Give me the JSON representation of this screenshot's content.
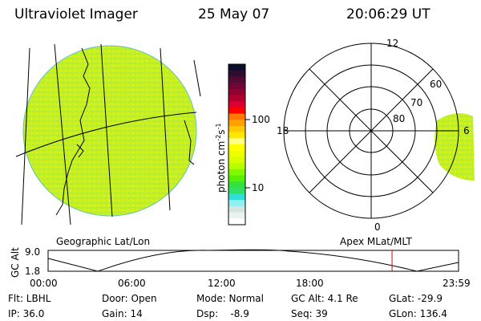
{
  "header": {
    "instrument": "Ultraviolet Imager",
    "date": "25 May 07",
    "time": "20:06:29 UT"
  },
  "colorbar": {
    "label": "photon cm",
    "exp1": "-2",
    "unit2": "s",
    "exp2": "-1",
    "ticks": [
      "100",
      "10"
    ],
    "colors": [
      "#0c0c2c",
      "#300c30",
      "#500a34",
      "#700636",
      "#900030",
      "#b00030",
      "#d80030",
      "#ff0000",
      "#ff7800",
      "#ffa000",
      "#ffc800",
      "#ffe800",
      "#ffff88",
      "#ffff00",
      "#f0ff00",
      "#d8ff00",
      "#b8ff00",
      "#80f800",
      "#58f000",
      "#34e03c",
      "#30e068",
      "#30e0d8",
      "#90f0f0",
      "#d4e4e0",
      "#e8f4ec",
      "#ffffff"
    ]
  },
  "polar": {
    "labels": {
      "top": "12",
      "left": "18",
      "right": "6",
      "bottom": "0",
      "lat60": "60",
      "lat70": "70",
      "lat80": "80"
    }
  },
  "map_labels": {
    "geographic": "Geographic Lat/Lon",
    "apex": "Apex MLat/MLT"
  },
  "altitude_plot": {
    "ylabel": "GC Alt",
    "ymax": "9.0",
    "ymin": "1.8",
    "xticks": [
      "00:00",
      "06:00",
      "12:00",
      "18:00",
      "23:59"
    ],
    "current_time_fraction": 0.838
  },
  "status": {
    "flt": "Flt: LBHL",
    "ip": "IP: 36.0",
    "door": "Door: Open",
    "gain": "Gain: 14",
    "mode": "Mode: Normal",
    "dsp": "Dsp:    -8.9",
    "gcalt": "GC Alt: 4.1 Re",
    "seq": "Seq: 39",
    "glat": "GLat: -29.9",
    "glon": "GLon: 136.4"
  }
}
